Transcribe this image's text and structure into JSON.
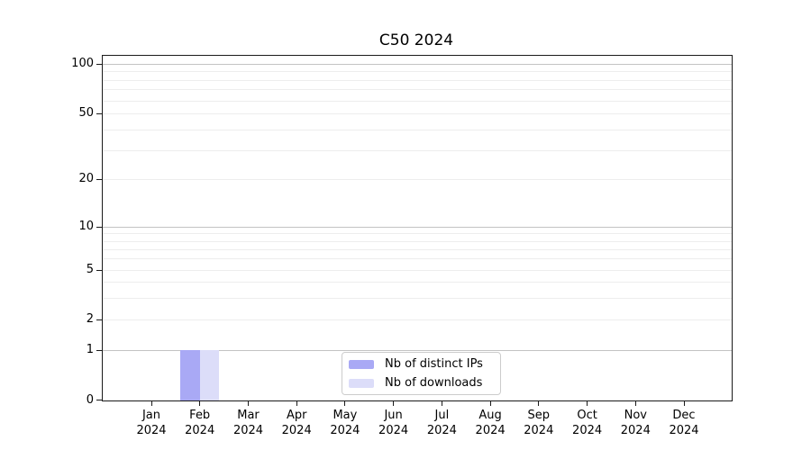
{
  "chart_data": {
    "type": "bar",
    "title": "C50 2024",
    "categories": [
      "Jan 2024",
      "Feb 2024",
      "Mar 2024",
      "Apr 2024",
      "May 2024",
      "Jun 2024",
      "Jul 2024",
      "Aug 2024",
      "Sep 2024",
      "Oct 2024",
      "Nov 2024",
      "Dec 2024"
    ],
    "series": [
      {
        "name": "Nb of distinct IPs",
        "color": "#a9a9f5",
        "values": [
          0,
          1,
          0,
          0,
          0,
          0,
          0,
          0,
          0,
          0,
          0,
          0
        ]
      },
      {
        "name": "Nb of downloads",
        "color": "#dcddf9",
        "values": [
          0,
          1,
          0,
          0,
          0,
          0,
          0,
          0,
          0,
          0,
          0,
          0
        ]
      }
    ],
    "y_ticks": [
      0,
      1,
      2,
      5,
      10,
      20,
      50,
      100
    ],
    "y_scale": "symlog",
    "ylim": [
      0,
      112
    ],
    "xlabel": "",
    "ylabel": "",
    "grid": "horizontal",
    "legend_position": "lower-center-inside",
    "colors": {
      "major_grid": "#c3c3c3",
      "minor_grid": "#ededed",
      "spine": "#1a1a1a",
      "text": "#000000",
      "background": "#ffffff"
    }
  }
}
